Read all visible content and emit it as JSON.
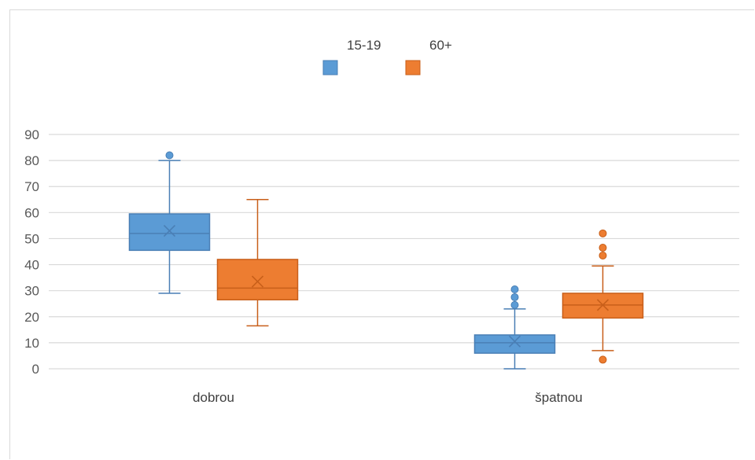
{
  "chart_data": {
    "type": "boxplot",
    "title": "",
    "xlabel": "",
    "ylabel": "",
    "ylim": [
      0,
      90
    ],
    "yticks": [
      0,
      10,
      20,
      30,
      40,
      50,
      60,
      70,
      80,
      90
    ],
    "grid": true,
    "legend_position": "top",
    "categories": [
      "dobrou",
      "špatnou"
    ],
    "series": [
      {
        "name": "15-19",
        "color": "#5b9bd5",
        "stroke": "#4a7fb5",
        "boxes": [
          {
            "min": 29,
            "q1": 45.5,
            "median": 52,
            "q3": 59.5,
            "max": 80,
            "mean": 53,
            "outliers": [
              82
            ]
          },
          {
            "min": 0,
            "q1": 6,
            "median": 10,
            "q3": 13,
            "max": 23,
            "mean": 10.5,
            "outliers": [
              24.5,
              27.5,
              30.5
            ]
          }
        ]
      },
      {
        "name": "60+",
        "color": "#ed7d31",
        "stroke": "#c85f1a",
        "boxes": [
          {
            "min": 16.5,
            "q1": 26.5,
            "median": 31,
            "q3": 42,
            "max": 65,
            "mean": 33.5,
            "outliers": []
          },
          {
            "min": 7,
            "q1": 19.5,
            "median": 24.5,
            "q3": 29,
            "max": 39.5,
            "mean": 24.5,
            "outliers": [
              3.5,
              43.5,
              46.5,
              52
            ]
          }
        ]
      }
    ]
  }
}
